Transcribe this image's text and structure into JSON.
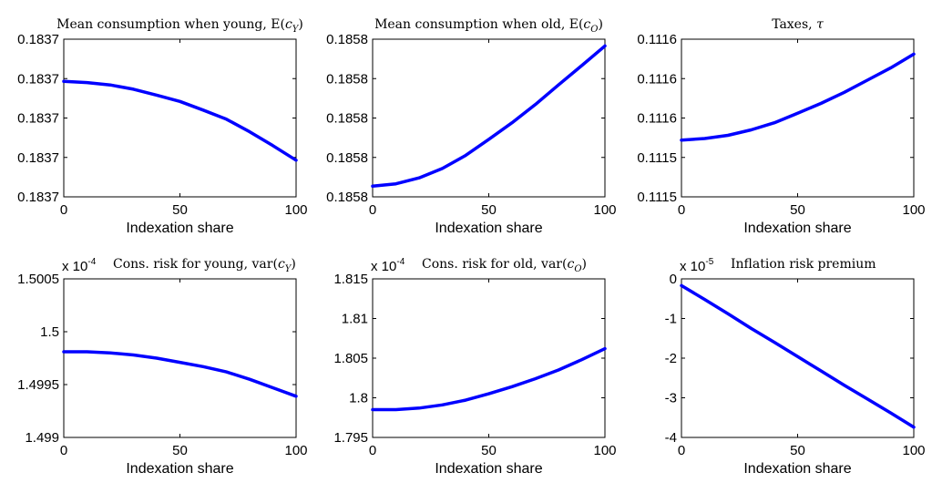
{
  "chart_data": [
    {
      "type": "line",
      "title": "Mean consumption when young, E(c_Y)",
      "title_text": "Mean consumption when young, E(",
      "title_var": "c",
      "title_sub": "Y",
      "title_close": ")",
      "xlabel": "Indexation share",
      "ylabel": "",
      "xlim": [
        0,
        100
      ],
      "ylim": [
        0,
        4
      ],
      "x_ticks": [
        "0",
        "50",
        "100"
      ],
      "y_ticks": [
        "0.1837",
        "0.1837",
        "0.1837",
        "0.1837",
        "0.1837"
      ],
      "multiplier": "",
      "multiplier_exp": "",
      "series": [
        {
          "color": "#0000ff",
          "x": [
            0,
            10,
            20,
            30,
            40,
            50,
            60,
            70,
            80,
            90,
            100
          ],
          "y": [
            2.93,
            2.9,
            2.84,
            2.73,
            2.58,
            2.42,
            2.2,
            1.97,
            1.65,
            1.3,
            0.93
          ]
        }
      ]
    },
    {
      "type": "line",
      "title": "Mean consumption when old, E(c_O)",
      "title_text": "Mean consumption when old, E(",
      "title_var": "c",
      "title_sub": "O",
      "title_close": ")",
      "xlabel": "Indexation share",
      "ylabel": "",
      "xlim": [
        0,
        100
      ],
      "ylim": [
        0,
        4
      ],
      "x_ticks": [
        "0",
        "50",
        "100"
      ],
      "y_ticks": [
        "0.1858",
        "0.1858",
        "0.1858",
        "0.1858",
        "0.1858"
      ],
      "multiplier": "",
      "multiplier_exp": "",
      "series": [
        {
          "color": "#0000ff",
          "x": [
            0,
            10,
            20,
            30,
            40,
            50,
            60,
            70,
            80,
            90,
            100
          ],
          "y": [
            0.27,
            0.33,
            0.48,
            0.72,
            1.05,
            1.46,
            1.88,
            2.34,
            2.84,
            3.33,
            3.83
          ]
        }
      ]
    },
    {
      "type": "line",
      "title": "Taxes, τ",
      "title_text": "Taxes, ",
      "title_var": "τ",
      "title_sub": "",
      "title_close": "",
      "xlabel": "Indexation share",
      "ylabel": "",
      "xlim": [
        0,
        100
      ],
      "ylim": [
        0,
        4
      ],
      "x_ticks": [
        "0",
        "50",
        "100"
      ],
      "y_ticks": [
        "0.1115",
        "0.1115",
        "0.1116",
        "0.1116",
        "0.1116"
      ],
      "multiplier": "",
      "multiplier_exp": "",
      "series": [
        {
          "color": "#0000ff",
          "x": [
            0,
            10,
            20,
            30,
            40,
            50,
            60,
            70,
            80,
            90,
            100
          ],
          "y": [
            1.44,
            1.48,
            1.56,
            1.7,
            1.88,
            2.12,
            2.37,
            2.65,
            2.96,
            3.27,
            3.62
          ]
        }
      ]
    },
    {
      "type": "line",
      "title": "Cons. risk for young, var(c_Y)",
      "title_text": "Cons. risk for young, var(",
      "title_var": "c",
      "title_sub": "Y",
      "title_close": ")",
      "xlabel": "Indexation share",
      "ylabel": "",
      "xlim": [
        0,
        100
      ],
      "ylim": [
        1.499,
        1.5005
      ],
      "x_ticks": [
        "0",
        "50",
        "100"
      ],
      "y_ticks": [
        "1.499",
        "1.4995",
        "1.5",
        "1.5005"
      ],
      "multiplier": "x 10",
      "multiplier_exp": "-4",
      "series": [
        {
          "color": "#0000ff",
          "x": [
            0,
            10,
            20,
            30,
            40,
            50,
            60,
            70,
            80,
            90,
            100
          ],
          "y": [
            1.49981,
            1.49981,
            1.4998,
            1.49978,
            1.49975,
            1.49971,
            1.49967,
            1.49962,
            1.49955,
            1.49947,
            1.49939
          ]
        }
      ]
    },
    {
      "type": "line",
      "title": "Cons. risk for old, var(c_O)",
      "title_text": "Cons. risk for old, var(",
      "title_var": "c",
      "title_sub": "O",
      "title_close": ")",
      "xlabel": "Indexation share",
      "ylabel": "",
      "xlim": [
        0,
        100
      ],
      "ylim": [
        1.795,
        1.815
      ],
      "x_ticks": [
        "0",
        "50",
        "100"
      ],
      "y_ticks": [
        "1.795",
        "1.8",
        "1.805",
        "1.81",
        "1.815"
      ],
      "multiplier": "x 10",
      "multiplier_exp": "-4",
      "series": [
        {
          "color": "#0000ff",
          "x": [
            0,
            10,
            20,
            30,
            40,
            50,
            60,
            70,
            80,
            90,
            100
          ],
          "y": [
            1.7985,
            1.7985,
            1.7987,
            1.7991,
            1.7997,
            1.8005,
            1.8014,
            1.8024,
            1.8035,
            1.8048,
            1.8062
          ]
        }
      ]
    },
    {
      "type": "line",
      "title": "Inflation risk premium",
      "title_text": "Inflation risk premium",
      "title_var": "",
      "title_sub": "",
      "title_close": "",
      "xlabel": "Indexation share",
      "ylabel": "",
      "xlim": [
        0,
        100
      ],
      "ylim": [
        -4,
        0
      ],
      "x_ticks": [
        "0",
        "50",
        "100"
      ],
      "y_ticks": [
        "-4",
        "-3",
        "-2",
        "-1",
        "0"
      ],
      "multiplier": "x 10",
      "multiplier_exp": "-5",
      "series": [
        {
          "color": "#0000ff",
          "x": [
            0,
            10,
            20,
            30,
            40,
            50,
            60,
            70,
            80,
            90,
            100
          ],
          "y": [
            -0.17,
            -0.52,
            -0.88,
            -1.25,
            -1.6,
            -1.96,
            -2.32,
            -2.68,
            -3.03,
            -3.38,
            -3.74
          ]
        }
      ]
    }
  ]
}
